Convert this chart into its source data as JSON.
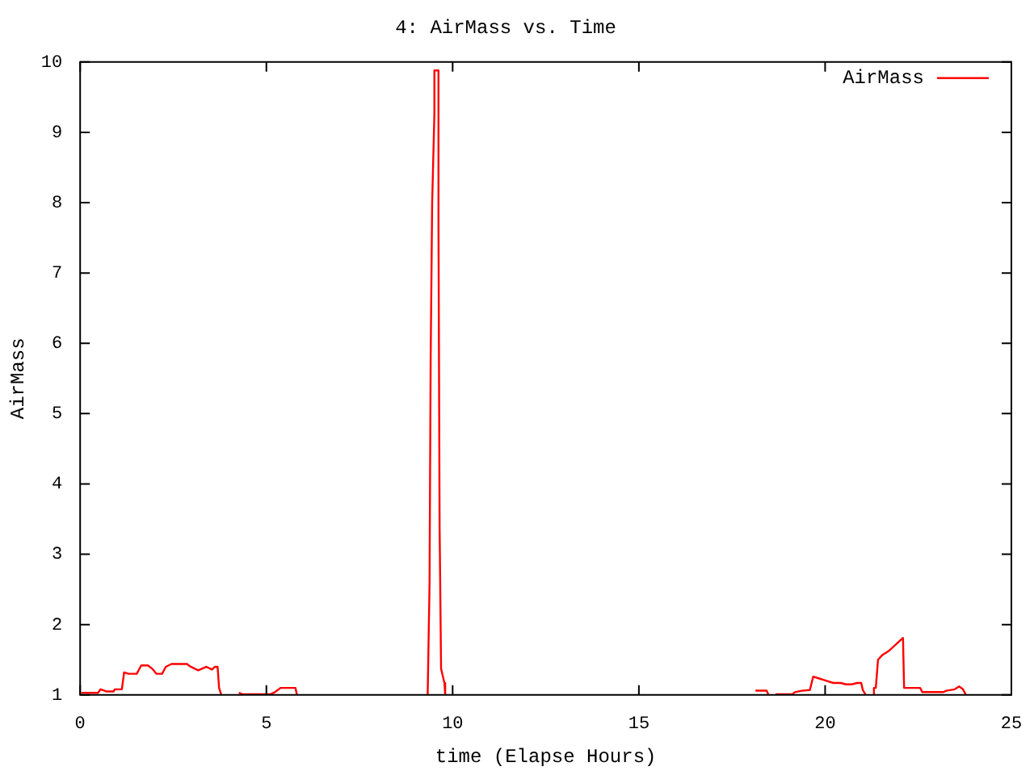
{
  "chart_data": {
    "type": "line",
    "title": "4: AirMass vs. Time",
    "xlabel": "time (Elapse Hours)",
    "ylabel": "AirMass",
    "xlim": [
      0,
      25
    ],
    "xticks": [
      0,
      5,
      10,
      15,
      20,
      25
    ],
    "ylim": [
      1,
      10
    ],
    "yticks": [
      1,
      2,
      3,
      4,
      5,
      6,
      7,
      8,
      9,
      10
    ],
    "grid": false,
    "legend": "top right",
    "marker": "none",
    "line_style": "solid",
    "series": [
      {
        "name": "AirMass",
        "color": "#ff0000",
        "x": [
          0.03,
          0.48,
          0.55,
          0.7,
          0.9,
          0.93,
          1.12,
          1.18,
          1.3,
          1.52,
          1.64,
          1.82,
          1.94,
          2.05,
          2.2,
          2.3,
          2.45,
          2.87,
          2.94,
          3.17,
          3.39,
          3.54,
          3.62,
          3.69,
          3.73,
          3.79,
          4.0,
          4.26,
          4.36,
          5.11,
          5.23,
          5.38,
          5.78,
          5.82,
          7.5,
          9.33,
          9.38,
          9.41,
          9.45,
          9.51,
          9.51,
          9.62,
          9.62,
          9.65,
          9.69,
          9.72,
          9.78,
          9.8,
          14.0,
          18.13,
          18.43,
          18.48,
          18.6,
          18.67,
          19.12,
          19.19,
          19.37,
          19.59,
          19.68,
          19.86,
          20.04,
          20.22,
          20.42,
          20.56,
          20.71,
          20.86,
          20.97,
          21.01,
          21.09,
          21.2,
          21.3,
          21.31,
          21.36,
          21.42,
          21.54,
          21.72,
          22.09,
          22.12,
          22.55,
          22.61,
          23.18,
          23.25,
          23.48,
          23.6,
          23.7,
          23.78
        ],
        "values": [
          1.03,
          1.03,
          1.08,
          1.05,
          1.05,
          1.08,
          1.08,
          1.32,
          1.3,
          1.3,
          1.42,
          1.42,
          1.37,
          1.3,
          1.3,
          1.4,
          1.44,
          1.44,
          1.41,
          1.35,
          1.4,
          1.36,
          1.4,
          1.4,
          1.1,
          1.0,
          null,
          1.03,
          1.01,
          1.01,
          1.04,
          1.1,
          1.1,
          1.0,
          null,
          1.0,
          2.58,
          5.77,
          7.99,
          9.26,
          9.88,
          9.88,
          7.72,
          3.4,
          1.37,
          1.37,
          1.17,
          1.0,
          null,
          1.06,
          1.06,
          1.0,
          null,
          1.01,
          1.01,
          1.04,
          1.06,
          1.07,
          1.26,
          1.23,
          1.2,
          1.17,
          1.17,
          1.15,
          1.15,
          1.17,
          1.17,
          1.07,
          1.0,
          null,
          1.0,
          1.1,
          1.1,
          1.5,
          1.57,
          1.63,
          1.81,
          1.1,
          1.1,
          1.04,
          1.04,
          1.06,
          1.08,
          1.12,
          1.08,
          1.0
        ]
      }
    ]
  }
}
